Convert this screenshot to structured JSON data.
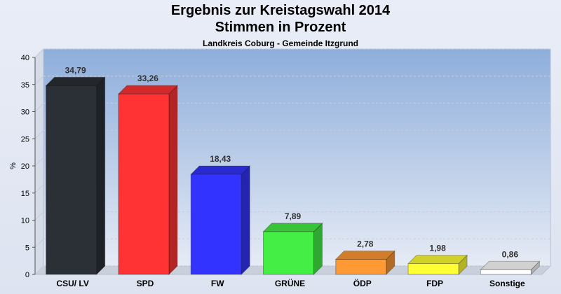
{
  "title": "Ergebnis zur Kreistagswahl 2014",
  "title2": "Stimmen in Prozent",
  "subtitle": "Landkreis Coburg - Gemeinde Itzgrund",
  "chart_data": {
    "type": "bar",
    "title": "Ergebnis zur Kreistagswahl 2014 / Stimmen in Prozent",
    "subtitle": "Landkreis Coburg - Gemeinde Itzgrund",
    "xlabel": "",
    "ylabel": "%",
    "ylim": [
      0,
      40
    ],
    "yticks": [
      0,
      5,
      10,
      15,
      20,
      25,
      30,
      35,
      40
    ],
    "grid": true,
    "categories": [
      "CSU/ LV",
      "SPD",
      "FW",
      "GRÜNE",
      "ÖDP",
      "FDP",
      "Sonstige"
    ],
    "values": [
      34.79,
      33.26,
      18.43,
      7.89,
      2.78,
      1.98,
      0.86
    ],
    "labels": [
      "34,79",
      "33,26",
      "18,43",
      "7,89",
      "2,78",
      "1,98",
      "0,86"
    ],
    "colors": [
      "#2b2f36",
      "#ff3333",
      "#3333ff",
      "#44ee44",
      "#ff9933",
      "#ffff33",
      "#ffffff"
    ]
  }
}
